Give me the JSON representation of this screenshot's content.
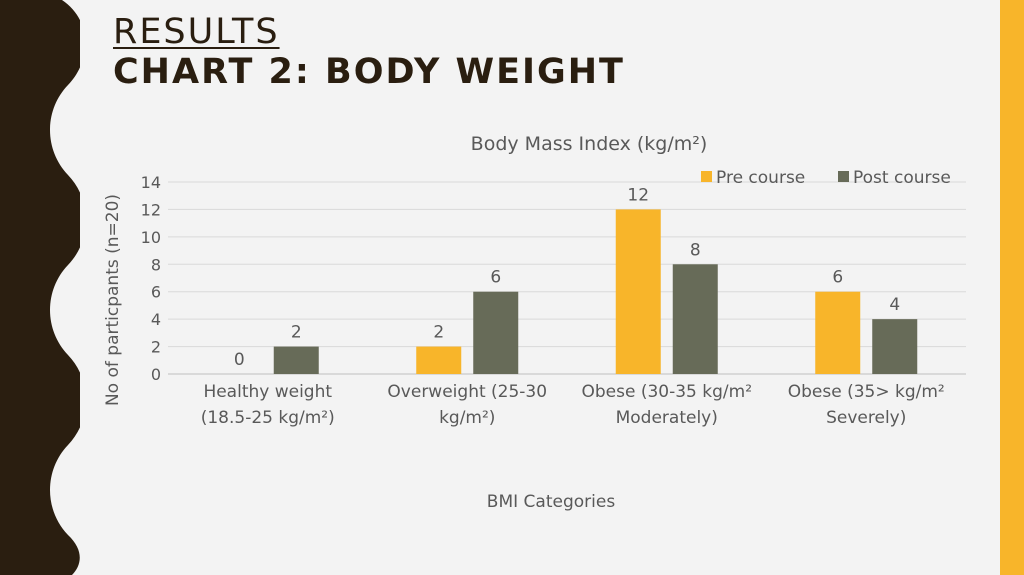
{
  "slide": {
    "title_line1": "RESULTS ",
    "title_line2": "CHART 2: BODY WEIGHT"
  },
  "colors": {
    "pre": "#f8b52a",
    "post": "#676b58",
    "wave": "#2a1e10",
    "accent": "#f8b52a"
  },
  "chart_data": {
    "type": "bar",
    "title": "Body Mass Index (kg/m²)",
    "xlabel": "BMI Categories",
    "ylabel": "No of particpants (n=20)",
    "ylim": [
      0,
      14
    ],
    "yticks": [
      0,
      2,
      4,
      6,
      8,
      10,
      12,
      14
    ],
    "grid": true,
    "legend": "top-right",
    "categories": [
      [
        "Healthy weight",
        "(18.5-25 kg/m²)"
      ],
      [
        "Overweight (25-30",
        "kg/m²)"
      ],
      [
        "Obese (30-35 kg/m²",
        "Moderately)"
      ],
      [
        "Obese (35> kg/m²",
        "Severely)"
      ]
    ],
    "series": [
      {
        "name": "Pre course",
        "values": [
          0,
          2,
          12,
          6
        ]
      },
      {
        "name": "Post course",
        "values": [
          2,
          6,
          8,
          4
        ]
      }
    ]
  }
}
